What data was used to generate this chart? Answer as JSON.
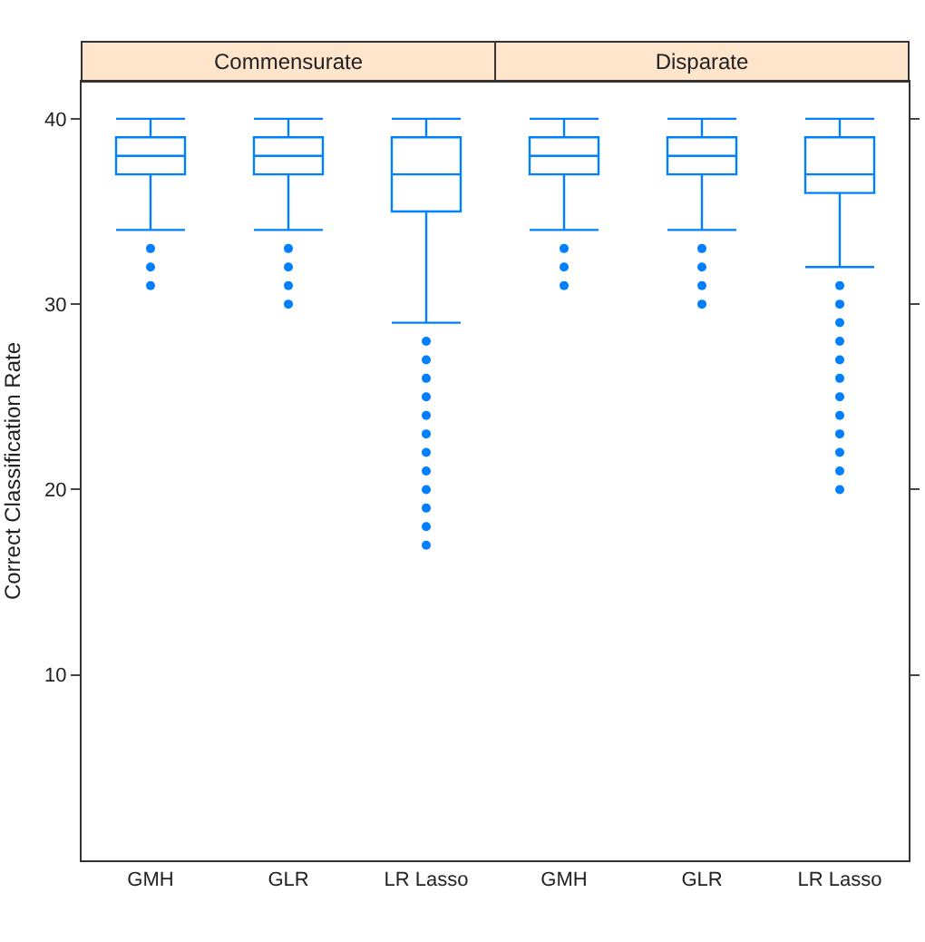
{
  "chart_data": [
    {
      "type": "box",
      "title": "Commensurate",
      "ylabel": "Correct Classification Rate",
      "categories": [
        "GMH",
        "GLR",
        "LR Lasso"
      ],
      "ylim": [
        0,
        42
      ],
      "yticks": [
        10,
        20,
        30,
        40
      ],
      "grid": false,
      "marker": "circle",
      "series": [
        {
          "color": "#0080ff",
          "boxes": [
            {
              "low": 34,
              "q1": 37,
              "median": 38,
              "q3": 39,
              "high": 40,
              "outliers": [
                33,
                32,
                31
              ]
            },
            {
              "low": 34,
              "q1": 37,
              "median": 38,
              "q3": 39,
              "high": 40,
              "outliers": [
                33,
                32,
                31,
                30
              ]
            },
            {
              "low": 29,
              "q1": 35,
              "median": 37,
              "q3": 39,
              "high": 40,
              "outliers": [
                28,
                27,
                26,
                25,
                24,
                23,
                22,
                21,
                20,
                19,
                18,
                17
              ]
            }
          ]
        }
      ]
    },
    {
      "type": "box",
      "title": "Disparate",
      "categories": [
        "GMH",
        "GLR",
        "LR Lasso"
      ],
      "ylim": [
        0,
        42
      ],
      "yticks": [
        10,
        20,
        30,
        40
      ],
      "grid": false,
      "marker": "circle",
      "tick_labels": "x",
      "series": [
        {
          "color": "#0080ff",
          "boxes": [
            {
              "low": 34,
              "q1": 37,
              "median": 38,
              "q3": 39,
              "high": 40,
              "outliers": [
                33,
                32,
                31
              ]
            },
            {
              "low": 34,
              "q1": 37,
              "median": 38,
              "q3": 39,
              "high": 40,
              "outliers": [
                33,
                32,
                31,
                30
              ]
            },
            {
              "low": 32,
              "q1": 36,
              "median": 37,
              "q3": 39,
              "high": 40,
              "outliers": [
                31,
                30,
                29,
                28,
                27,
                26,
                25,
                24,
                23,
                22,
                21,
                20
              ]
            }
          ]
        }
      ]
    }
  ]
}
